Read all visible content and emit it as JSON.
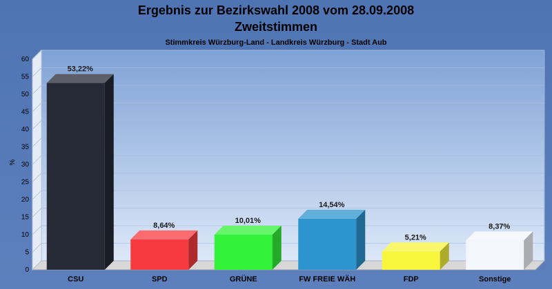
{
  "chart_data": {
    "type": "bar",
    "title": "Ergebnis zur Bezirkswahl 2008 vom 28.09.2008",
    "title2": "Zweitstimmen",
    "subtitle": "Stimmkreis Würzburg-Land - Landkreis Würzburg - Stadt Aub",
    "xlabel": "",
    "ylabel": "%",
    "ylim": [
      0,
      60
    ],
    "yticks": [
      0,
      5,
      10,
      15,
      20,
      25,
      30,
      35,
      40,
      45,
      50,
      55,
      60
    ],
    "categories": [
      "CSU",
      "SPD",
      "GRÜNE",
      "FW FREIE WÄH",
      "FDP",
      "Sonstige"
    ],
    "values": [
      53.22,
      8.64,
      10.01,
      14.54,
      5.21,
      8.37
    ],
    "value_labels": [
      "53,22%",
      "8,64%",
      "10,01%",
      "14,54%",
      "5,21%",
      "8,37%"
    ],
    "colors": [
      "#252a35",
      "#f73a3f",
      "#33f23a",
      "#2c95d0",
      "#f7f53c",
      "#f3f6fb"
    ],
    "grid": true,
    "legend": "none"
  }
}
